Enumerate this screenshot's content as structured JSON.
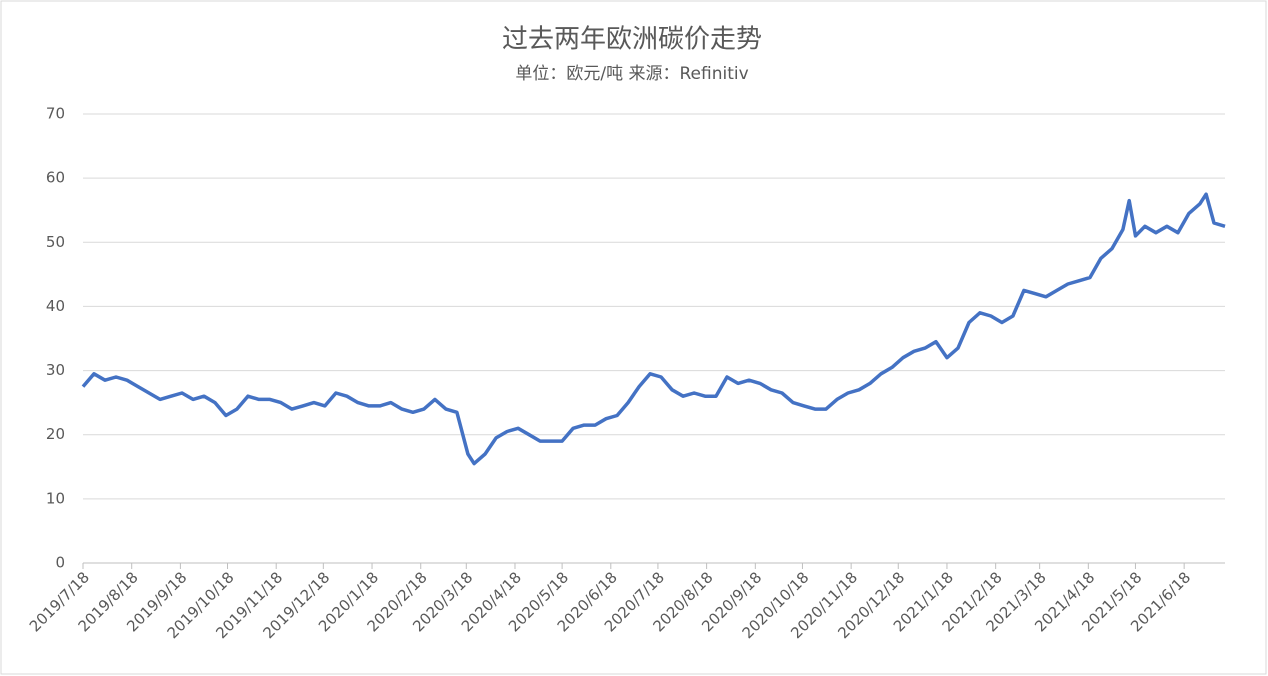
{
  "chart_data": {
    "type": "line",
    "title": "过去两年欧洲碳价走势",
    "subtitle": "单位：欧元/吨 来源：Refinitiv",
    "color": "#4472c4",
    "grid": true,
    "x": [
      "2019/7/18",
      "2019/7/25",
      "2019/8/1",
      "2019/8/8",
      "2019/8/15",
      "2019/8/22",
      "2019/8/29",
      "2019/9/5",
      "2019/9/12",
      "2019/9/19",
      "2019/9/26",
      "2019/10/3",
      "2019/10/10",
      "2019/10/17",
      "2019/10/24",
      "2019/10/31",
      "2019/11/7",
      "2019/11/14",
      "2019/11/21",
      "2019/11/28",
      "2019/12/5",
      "2019/12/12",
      "2019/12/19",
      "2019/12/26",
      "2020/1/2",
      "2020/1/9",
      "2020/1/16",
      "2020/1/23",
      "2020/1/30",
      "2020/2/6",
      "2020/2/13",
      "2020/2/20",
      "2020/2/27",
      "2020/3/5",
      "2020/3/12",
      "2020/3/19",
      "2020/3/23",
      "2020/3/30",
      "2020/4/6",
      "2020/4/13",
      "2020/4/20",
      "2020/4/27",
      "2020/5/4",
      "2020/5/11",
      "2020/5/18",
      "2020/5/25",
      "2020/6/1",
      "2020/6/8",
      "2020/6/15",
      "2020/6/22",
      "2020/6/29",
      "2020/7/6",
      "2020/7/13",
      "2020/7/20",
      "2020/7/27",
      "2020/8/3",
      "2020/8/10",
      "2020/8/17",
      "2020/8/24",
      "2020/8/31",
      "2020/9/7",
      "2020/9/14",
      "2020/9/21",
      "2020/9/28",
      "2020/10/5",
      "2020/10/12",
      "2020/10/19",
      "2020/10/26",
      "2020/11/2",
      "2020/11/9",
      "2020/11/16",
      "2020/11/23",
      "2020/11/30",
      "2020/12/7",
      "2020/12/14",
      "2020/12/21",
      "2020/12/28",
      "2021/1/4",
      "2021/1/11",
      "2021/1/18",
      "2021/1/25",
      "2021/2/1",
      "2021/2/8",
      "2021/2/15",
      "2021/2/22",
      "2021/3/1",
      "2021/3/8",
      "2021/3/15",
      "2021/3/22",
      "2021/3/29",
      "2021/4/5",
      "2021/4/12",
      "2021/4/19",
      "2021/4/26",
      "2021/5/3",
      "2021/5/10",
      "2021/5/14",
      "2021/5/18",
      "2021/5/24",
      "2021/5/31",
      "2021/6/7",
      "2021/6/14",
      "2021/6/21",
      "2021/6/28",
      "2021/7/2",
      "2021/7/7",
      "2021/7/14"
    ],
    "values": [
      27.5,
      29.5,
      28.5,
      29,
      28.5,
      27.5,
      26.5,
      25.5,
      26,
      26.5,
      25.5,
      26,
      25,
      23,
      24,
      26,
      25.5,
      25.5,
      25,
      24,
      24.5,
      25,
      24.5,
      26.5,
      26,
      25,
      24.5,
      24.5,
      25,
      24,
      23.5,
      24,
      25.5,
      24,
      23.5,
      17,
      15.5,
      17,
      19.5,
      20.5,
      21,
      20,
      19,
      19,
      19,
      21,
      21.5,
      21.5,
      22.5,
      23,
      25,
      27.5,
      29.5,
      29,
      27,
      26,
      26.5,
      26,
      26,
      29,
      28,
      28.5,
      28,
      27,
      26.5,
      25,
      24.5,
      24,
      24,
      25.5,
      26.5,
      27,
      28,
      29.5,
      30.5,
      32,
      33,
      33.5,
      34.5,
      32,
      33.5,
      37.5,
      39,
      38.5,
      37.5,
      38.5,
      42.5,
      42,
      41.5,
      42.5,
      43.5,
      44,
      44.5,
      47.5,
      49,
      52,
      56.5,
      51,
      52.5,
      51.5,
      52.5,
      51.5,
      54.5,
      56,
      57.5,
      53,
      52.5
    ],
    "xlim": [
      "2019/7/18",
      "2021/7/14"
    ],
    "xticks": [
      "2019/7/18",
      "2019/8/18",
      "2019/9/18",
      "2019/10/18",
      "2019/11/18",
      "2019/12/18",
      "2020/1/18",
      "2020/2/18",
      "2020/3/18",
      "2020/4/18",
      "2020/5/18",
      "2020/6/18",
      "2020/7/18",
      "2020/8/18",
      "2020/9/18",
      "2020/10/18",
      "2020/11/18",
      "2020/12/18",
      "2021/1/18",
      "2021/2/18",
      "2021/3/18",
      "2021/4/18",
      "2021/5/18",
      "2021/6/18"
    ],
    "ylim": [
      0,
      70
    ],
    "yticks": [
      0,
      10,
      20,
      30,
      40,
      50,
      60,
      70
    ]
  }
}
